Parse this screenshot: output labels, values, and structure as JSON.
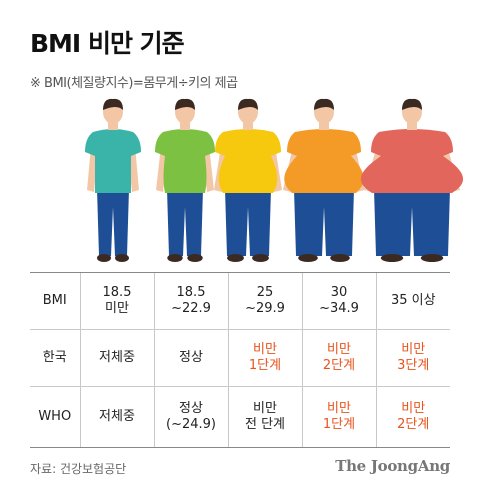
{
  "title": "BMI 비만 기준",
  "subtitle": "※ BMI(체질량지수)=몸무게÷키의 제곱",
  "figures": [
    {
      "icon": "slim-person-icon",
      "shirt": "#3ab3a8",
      "size": 0
    },
    {
      "icon": "normal-person-icon",
      "shirt": "#7cc142",
      "size": 1
    },
    {
      "icon": "overweight-person-icon",
      "shirt": "#f6c90e",
      "size": 2
    },
    {
      "icon": "obese-person-icon",
      "shirt": "#f39a27",
      "size": 3
    },
    {
      "icon": "severely-obese-person-icon",
      "shirt": "#e2665b",
      "size": 4
    }
  ],
  "colors": {
    "pants": "#1e4f96",
    "skin": "#f3c7a6",
    "hair": "#3a2a22",
    "danger_text": "#e8541c"
  },
  "table": {
    "rows": [
      {
        "header": "BMI",
        "cells": [
          {
            "text": "18.5\n미만",
            "alert": false
          },
          {
            "text": "18.5\n~22.9",
            "alert": false
          },
          {
            "text": "25\n~29.9",
            "alert": false
          },
          {
            "text": "30\n~34.9",
            "alert": false
          },
          {
            "text": "35 이상",
            "alert": false
          }
        ]
      },
      {
        "header": "한국",
        "cells": [
          {
            "text": "저체중",
            "alert": false
          },
          {
            "text": "정상",
            "alert": false
          },
          {
            "text": "비만\n1단계",
            "alert": true
          },
          {
            "text": "비만\n2단계",
            "alert": true
          },
          {
            "text": "비만\n3단계",
            "alert": true
          }
        ]
      },
      {
        "header": "WHO",
        "cells": [
          {
            "text": "저체중",
            "alert": false
          },
          {
            "text": "정상\n(~24.9)",
            "alert": false
          },
          {
            "text": "비만\n전 단계",
            "alert": false
          },
          {
            "text": "비만\n1단계",
            "alert": true
          },
          {
            "text": "비만\n2단계",
            "alert": true
          }
        ]
      }
    ]
  },
  "source": "자료: 건강보험공단",
  "brand": "The JoongAng"
}
